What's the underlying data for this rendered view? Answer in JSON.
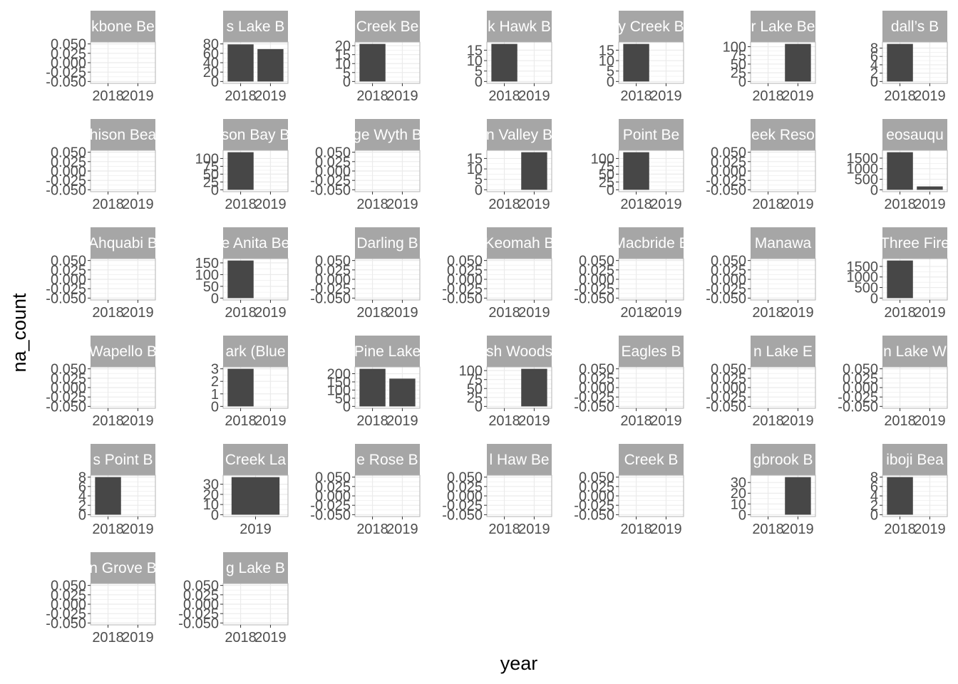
{
  "chart_data": {
    "type": "bar",
    "layout": "facet_wrap",
    "ncol": 7,
    "xlabel": "year",
    "ylabel": "na_count",
    "x": [
      "2018",
      "2019"
    ],
    "grid": true,
    "bar_color": "#474747",
    "strip_color": "#a6a6a6",
    "panel_border_color": "#b3b3b3",
    "grid_color": "#ebebeb",
    "facets": [
      {
        "label": "kbone Be",
        "x_ticks": [
          "2018",
          "2019"
        ],
        "values": [
          0,
          0
        ],
        "y_ticks": [
          "0.050",
          "0.025",
          "0.000",
          "-0.025",
          "-0.050"
        ]
      },
      {
        "label": "s Lake B",
        "x_ticks": [
          "2018",
          "2019"
        ],
        "values": [
          79,
          69
        ],
        "y_ticks": [
          "80",
          "60",
          "40",
          "20",
          "0"
        ]
      },
      {
        "label": "Creek Be",
        "x_ticks": [
          "2018",
          "2019"
        ],
        "values": [
          21,
          0
        ],
        "y_ticks": [
          "20",
          "15",
          "10",
          "5",
          "0"
        ]
      },
      {
        "label": "k Hawk B",
        "x_ticks": [
          "2018",
          "2019"
        ],
        "values": [
          18,
          0
        ],
        "y_ticks": [
          "15",
          "10",
          "5",
          "0"
        ]
      },
      {
        "label": "y Creek B",
        "x_ticks": [
          "2018",
          "2019"
        ],
        "values": [
          18,
          0
        ],
        "y_ticks": [
          "15",
          "10",
          "5",
          "0"
        ]
      },
      {
        "label": "r Lake Be",
        "x_ticks": [
          "2018",
          "2019"
        ],
        "values": [
          0,
          108
        ],
        "y_ticks": [
          "100",
          "75",
          "50",
          "25",
          "0"
        ]
      },
      {
        "label": "dall’s B",
        "x_ticks": [
          "2018",
          "2019"
        ],
        "values": [
          9,
          0
        ],
        "y_ticks": [
          "8",
          "6",
          "4",
          "2",
          "0"
        ]
      },
      {
        "label": "hison Bea",
        "x_ticks": [
          "2018",
          "2019"
        ],
        "values": [
          0,
          0
        ],
        "y_ticks": [
          "0.050",
          "0.025",
          "0.000",
          "-0.025",
          "-0.050"
        ]
      },
      {
        "label": "son Bay B",
        "x_ticks": [
          "2018",
          "2019"
        ],
        "values": [
          120,
          0
        ],
        "y_ticks": [
          "100",
          "75",
          "50",
          "25",
          "0"
        ]
      },
      {
        "label": "ge Wyth B",
        "x_ticks": [
          "2018",
          "2019"
        ],
        "values": [
          0,
          0
        ],
        "y_ticks": [
          "0.050",
          "0.025",
          "0.000",
          "-0.025",
          "-0.050"
        ]
      },
      {
        "label": "n Valley B",
        "x_ticks": [
          "2018",
          "2019"
        ],
        "values": [
          0,
          18
        ],
        "y_ticks": [
          "15",
          "10",
          "5",
          "0"
        ]
      },
      {
        "label": "Point Be",
        "x_ticks": [
          "2018",
          "2019"
        ],
        "values": [
          120,
          0
        ],
        "y_ticks": [
          "100",
          "75",
          "50",
          "25",
          "0"
        ]
      },
      {
        "label": "eek Reso",
        "x_ticks": [
          "2018",
          "2019"
        ],
        "values": [
          0,
          0
        ],
        "y_ticks": [
          "0.050",
          "0.025",
          "0.000",
          "-0.025",
          "-0.050"
        ]
      },
      {
        "label": "eosauqu",
        "x_ticks": [
          "2018",
          "2019"
        ],
        "values": [
          1780,
          160
        ],
        "y_ticks": [
          "1500",
          "1000",
          "500",
          "0"
        ]
      },
      {
        "label": "Ahquabi B",
        "x_ticks": [
          "2018",
          "2019"
        ],
        "values": [
          0,
          0
        ],
        "y_ticks": [
          "0.050",
          "0.025",
          "0.000",
          "-0.025",
          "-0.050"
        ]
      },
      {
        "label": "e Anita Be",
        "x_ticks": [
          "2018",
          "2019"
        ],
        "values": [
          160,
          0
        ],
        "y_ticks": [
          "150",
          "100",
          "50",
          "0"
        ]
      },
      {
        "label": "Darling B",
        "x_ticks": [
          "2018",
          "2019"
        ],
        "values": [
          0,
          0
        ],
        "y_ticks": [
          "0.050",
          "0.025",
          "0.000",
          "-0.025",
          "-0.050"
        ]
      },
      {
        "label": "Keomah B",
        "x_ticks": [
          "2018",
          "2019"
        ],
        "values": [
          0,
          0
        ],
        "y_ticks": [
          "0.050",
          "0.025",
          "0.000",
          "-0.025",
          "-0.050"
        ]
      },
      {
        "label": "Macbride B",
        "x_ticks": [
          "2018",
          "2019"
        ],
        "values": [
          0,
          0
        ],
        "y_ticks": [
          "0.050",
          "0.025",
          "0.000",
          "-0.025",
          "-0.050"
        ]
      },
      {
        "label": "Manawa",
        "x_ticks": [
          "2018",
          "2019"
        ],
        "values": [
          0,
          0
        ],
        "y_ticks": [
          "0.050",
          "0.025",
          "0.000",
          "-0.025",
          "-0.050"
        ]
      },
      {
        "label": "Three Fire",
        "x_ticks": [
          "2018",
          "2019"
        ],
        "values": [
          1780,
          0
        ],
        "y_ticks": [
          "1500",
          "1000",
          "500",
          "0"
        ]
      },
      {
        "label": "Wapello B",
        "x_ticks": [
          "2018",
          "2019"
        ],
        "values": [
          0,
          0
        ],
        "y_ticks": [
          "0.050",
          "0.025",
          "0.000",
          "-0.025",
          "-0.050"
        ]
      },
      {
        "label": "ark (Blue",
        "x_ticks": [
          "2018",
          "2019"
        ],
        "values": [
          3,
          0
        ],
        "y_ticks": [
          "3",
          "2",
          "1",
          "0"
        ]
      },
      {
        "label": "Pine Lake",
        "x_ticks": [
          "2018",
          "2019"
        ],
        "values": [
          230,
          170
        ],
        "y_ticks": [
          "200",
          "150",
          "100",
          "50",
          "0"
        ]
      },
      {
        "label": "sh Woods",
        "x_ticks": [
          "2018",
          "2019"
        ],
        "values": [
          0,
          105
        ],
        "y_ticks": [
          "100",
          "75",
          "50",
          "25",
          "0"
        ]
      },
      {
        "label": "Eagles B",
        "x_ticks": [
          "2018",
          "2019"
        ],
        "values": [
          0,
          0
        ],
        "y_ticks": [
          "0.050",
          "0.025",
          "0.000",
          "-0.025",
          "-0.050"
        ]
      },
      {
        "label": "n Lake E",
        "x_ticks": [
          "2018",
          "2019"
        ],
        "values": [
          0,
          0
        ],
        "y_ticks": [
          "0.050",
          "0.025",
          "0.000",
          "-0.025",
          "-0.050"
        ]
      },
      {
        "label": "n Lake W",
        "x_ticks": [
          "2018",
          "2019"
        ],
        "values": [
          0,
          0
        ],
        "y_ticks": [
          "0.050",
          "0.025",
          "0.000",
          "-0.025",
          "-0.050"
        ]
      },
      {
        "label": "s Point B",
        "x_ticks": [
          "2018",
          "2019"
        ],
        "values": [
          8,
          0
        ],
        "y_ticks": [
          "8",
          "6",
          "4",
          "2",
          "0"
        ]
      },
      {
        "label": "Creek La",
        "x_ticks": [
          "2019"
        ],
        "values": [
          null,
          37
        ],
        "y_ticks": [
          "30",
          "20",
          "10",
          "0"
        ]
      },
      {
        "label": "e Rose B",
        "x_ticks": [
          "2018",
          "2019"
        ],
        "values": [
          0,
          0
        ],
        "y_ticks": [
          "0.050",
          "0.025",
          "0.000",
          "-0.025",
          "-0.050"
        ]
      },
      {
        "label": "l Haw Be",
        "x_ticks": [
          "2018",
          "2019"
        ],
        "values": [
          0,
          0
        ],
        "y_ticks": [
          "0.050",
          "0.025",
          "0.000",
          "-0.025",
          "-0.050"
        ]
      },
      {
        "label": "Creek B",
        "x_ticks": [
          "2018",
          "2019"
        ],
        "values": [
          0,
          0
        ],
        "y_ticks": [
          "0.050",
          "0.025",
          "0.000",
          "-0.025",
          "-0.050"
        ]
      },
      {
        "label": "gbrook B",
        "x_ticks": [
          "2018",
          "2019"
        ],
        "values": [
          0,
          35
        ],
        "y_ticks": [
          "30",
          "20",
          "10",
          "0"
        ]
      },
      {
        "label": "iboji Bea",
        "x_ticks": [
          "2018",
          "2019"
        ],
        "values": [
          8,
          0
        ],
        "y_ticks": [
          "8",
          "6",
          "4",
          "2",
          "0"
        ]
      },
      {
        "label": "n Grove B",
        "x_ticks": [
          "2018",
          "2019"
        ],
        "values": [
          0,
          0
        ],
        "y_ticks": [
          "0.050",
          "0.025",
          "0.000",
          "-0.025",
          "-0.050"
        ]
      },
      {
        "label": "g Lake B",
        "x_ticks": [
          "2018",
          "2019"
        ],
        "values": [
          0,
          0
        ],
        "y_ticks": [
          "0.050",
          "0.025",
          "0.000",
          "-0.025",
          "-0.050"
        ]
      }
    ]
  }
}
